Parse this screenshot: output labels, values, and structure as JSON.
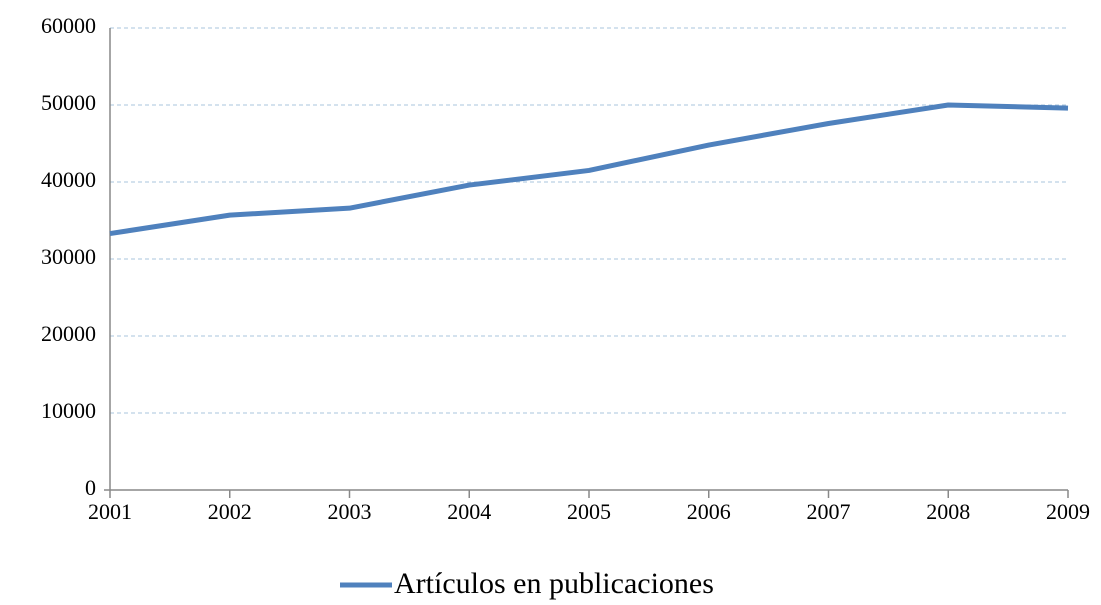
{
  "chart_data": {
    "type": "line",
    "categories": [
      "2001",
      "2002",
      "2003",
      "2004",
      "2005",
      "2006",
      "2007",
      "2008",
      "2009"
    ],
    "series": [
      {
        "name": "Artículos en publicaciones",
        "color": "#4f81bd",
        "values": [
          33300,
          35700,
          36600,
          39600,
          41500,
          44800,
          47600,
          50000,
          49600
        ]
      }
    ],
    "ylim": [
      0,
      60000
    ],
    "yticks": [
      0,
      10000,
      20000,
      30000,
      40000,
      50000,
      60000
    ],
    "grid": true,
    "legend": "bottom"
  }
}
